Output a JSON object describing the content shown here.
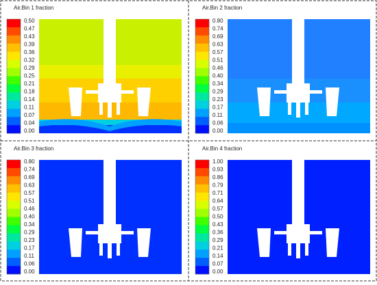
{
  "panels": [
    {
      "title": "Air.Bin 1 fraction",
      "colorbar": [
        "0.50",
        "0.47",
        "0.43",
        "0.39",
        "0.36",
        "0.32",
        "0.29",
        "0.25",
        "0.21",
        "0.18",
        "0.14",
        "0.11",
        "0.07",
        "0.04",
        "0.00"
      ]
    },
    {
      "title": "Air.Bin 2 fraction",
      "colorbar": [
        "0.80",
        "0.74",
        "0.69",
        "0.63",
        "0.57",
        "0.51",
        "0.46",
        "0.40",
        "0.34",
        "0.29",
        "0.23",
        "0.17",
        "0.11",
        "0.06",
        "0.00"
      ]
    },
    {
      "title": "Air.Bin 3 fraction",
      "colorbar": [
        "0.80",
        "0.74",
        "0.69",
        "0.63",
        "0.57",
        "0.51",
        "0.46",
        "0.40",
        "0.34",
        "0.29",
        "0.23",
        "0.17",
        "0.11",
        "0.06",
        "0.00"
      ]
    },
    {
      "title": "Air.Bin 4 fraction",
      "colorbar": [
        "1.00",
        "0.93",
        "0.86",
        "0.79",
        "0.71",
        "0.64",
        "0.57",
        "0.50",
        "0.43",
        "0.36",
        "0.29",
        "0.21",
        "0.14",
        "0.07",
        "0.00"
      ]
    }
  ],
  "colormap": [
    "#ff0000",
    "#ff4a00",
    "#ff8c00",
    "#ffc000",
    "#ffe600",
    "#d8ff00",
    "#a0ff00",
    "#40ff00",
    "#00ff40",
    "#00e8a0",
    "#00d0e0",
    "#00a0ff",
    "#0060ff",
    "#0010ff"
  ]
}
